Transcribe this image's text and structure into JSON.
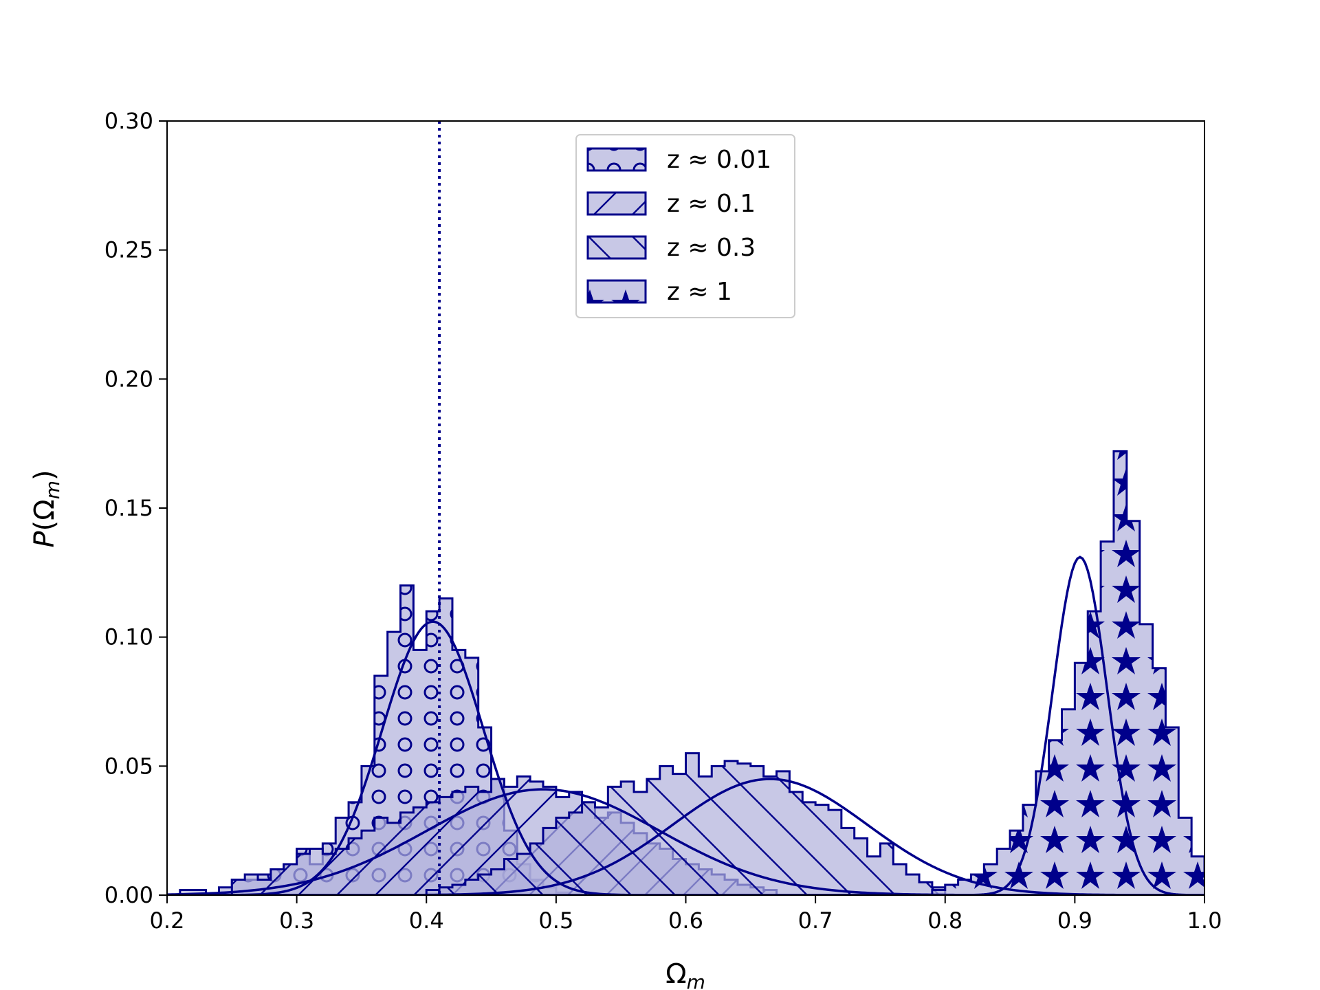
{
  "chart_data": {
    "type": "histogram",
    "xlabel": "Ω_m",
    "ylabel": "P(Ω_m)",
    "xlim": [
      0.2,
      1.0
    ],
    "ylim": [
      0.0,
      0.3
    ],
    "xticks": [
      "0.2",
      "0.3",
      "0.4",
      "0.5",
      "0.6",
      "0.7",
      "0.8",
      "0.9",
      "1.0"
    ],
    "yticks": [
      "0.00",
      "0.05",
      "0.10",
      "0.15",
      "0.20",
      "0.25",
      "0.30"
    ],
    "reference_line": {
      "x": 0.41,
      "style": "dotted"
    },
    "grid": false,
    "legend_position": "upper-center",
    "colors": {
      "edge": "#00008b",
      "fill": "#b0b0dc"
    },
    "bin_width": 0.01,
    "series": [
      {
        "name": "z ≈ 0.01",
        "legend": "z ≈ 0.01",
        "hatch": "circles",
        "bin_start": 0.21,
        "counts": [
          0.002,
          0.002,
          0.0,
          0.003,
          0.006,
          0.006,
          0.008,
          0.01,
          0.012,
          0.018,
          0.012,
          0.02,
          0.03,
          0.036,
          0.05,
          0.085,
          0.102,
          0.12,
          0.095,
          0.11,
          0.115,
          0.095,
          0.092,
          0.065,
          0.045,
          0.025,
          0.012,
          0.006,
          0.003,
          0.001
        ],
        "fit": {
          "mean": 0.405,
          "sigma": 0.039,
          "peak": 0.106
        }
      },
      {
        "name": "z ≈ 0.1",
        "legend": "z ≈ 0.1",
        "hatch": "forward-diagonal",
        "bin_start": 0.25,
        "counts": [
          0.006,
          0.008,
          0.006,
          0.01,
          0.012,
          0.016,
          0.018,
          0.016,
          0.018,
          0.022,
          0.025,
          0.03,
          0.028,
          0.032,
          0.034,
          0.036,
          0.038,
          0.04,
          0.042,
          0.04,
          0.045,
          0.042,
          0.046,
          0.044,
          0.042,
          0.038,
          0.04,
          0.036,
          0.03,
          0.032,
          0.028,
          0.024,
          0.02,
          0.018,
          0.014,
          0.012,
          0.01,
          0.008,
          0.006,
          0.004,
          0.003,
          0.002
        ],
        "fit": {
          "mean": 0.49,
          "sigma": 0.09,
          "peak": 0.041
        }
      },
      {
        "name": "z ≈ 0.3",
        "legend": "z ≈ 0.3",
        "hatch": "back-diagonal",
        "bin_start": 0.4,
        "counts": [
          0.002,
          0.003,
          0.004,
          0.006,
          0.008,
          0.01,
          0.014,
          0.016,
          0.02,
          0.026,
          0.03,
          0.032,
          0.036,
          0.034,
          0.042,
          0.044,
          0.04,
          0.045,
          0.05,
          0.047,
          0.055,
          0.046,
          0.05,
          0.052,
          0.051,
          0.05,
          0.046,
          0.048,
          0.04,
          0.036,
          0.035,
          0.033,
          0.026,
          0.022,
          0.015,
          0.02,
          0.012,
          0.008,
          0.005,
          0.003
        ],
        "fit": {
          "mean": 0.665,
          "sigma": 0.075,
          "peak": 0.045
        }
      },
      {
        "name": "z ≈ 1",
        "legend": "z ≈ 1",
        "hatch": "stars",
        "bin_start": 0.79,
        "counts": [
          0.002,
          0.004,
          0.006,
          0.008,
          0.012,
          0.018,
          0.025,
          0.035,
          0.048,
          0.06,
          0.072,
          0.09,
          0.11,
          0.137,
          0.172,
          0.145,
          0.105,
          0.088,
          0.065,
          0.03,
          0.015,
          0.008,
          0.004
        ],
        "fit": {
          "mean": 0.904,
          "sigma": 0.021,
          "peak": 0.131
        }
      }
    ]
  }
}
